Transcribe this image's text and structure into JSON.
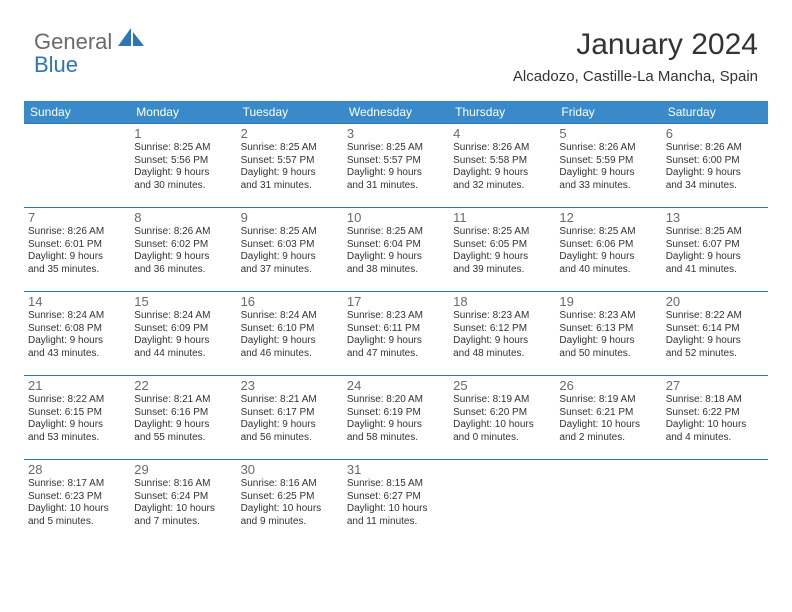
{
  "brand": {
    "part1": "General",
    "part2": "Blue",
    "logo_color": "#2e75b6"
  },
  "title": "January 2024",
  "location": "Alcadozo, Castille-La Mancha, Spain",
  "colors": {
    "header_bg": "#3a8ac9",
    "header_text": "#ffffff",
    "cell_border": "#2e75b6",
    "daynum": "#6a6a6a",
    "body_text": "#333333",
    "background": "#ffffff"
  },
  "typography": {
    "title_fontsize": 30,
    "location_fontsize": 15,
    "dayheader_fontsize": 12,
    "daynum_fontsize": 13,
    "cell_fontsize": 10
  },
  "day_headers": [
    "Sunday",
    "Monday",
    "Tuesday",
    "Wednesday",
    "Thursday",
    "Friday",
    "Saturday"
  ],
  "weeks": [
    [
      null,
      {
        "n": "1",
        "sr": "Sunrise: 8:25 AM",
        "ss": "Sunset: 5:56 PM",
        "d1": "Daylight: 9 hours",
        "d2": "and 30 minutes."
      },
      {
        "n": "2",
        "sr": "Sunrise: 8:25 AM",
        "ss": "Sunset: 5:57 PM",
        "d1": "Daylight: 9 hours",
        "d2": "and 31 minutes."
      },
      {
        "n": "3",
        "sr": "Sunrise: 8:25 AM",
        "ss": "Sunset: 5:57 PM",
        "d1": "Daylight: 9 hours",
        "d2": "and 31 minutes."
      },
      {
        "n": "4",
        "sr": "Sunrise: 8:26 AM",
        "ss": "Sunset: 5:58 PM",
        "d1": "Daylight: 9 hours",
        "d2": "and 32 minutes."
      },
      {
        "n": "5",
        "sr": "Sunrise: 8:26 AM",
        "ss": "Sunset: 5:59 PM",
        "d1": "Daylight: 9 hours",
        "d2": "and 33 minutes."
      },
      {
        "n": "6",
        "sr": "Sunrise: 8:26 AM",
        "ss": "Sunset: 6:00 PM",
        "d1": "Daylight: 9 hours",
        "d2": "and 34 minutes."
      }
    ],
    [
      {
        "n": "7",
        "sr": "Sunrise: 8:26 AM",
        "ss": "Sunset: 6:01 PM",
        "d1": "Daylight: 9 hours",
        "d2": "and 35 minutes."
      },
      {
        "n": "8",
        "sr": "Sunrise: 8:26 AM",
        "ss": "Sunset: 6:02 PM",
        "d1": "Daylight: 9 hours",
        "d2": "and 36 minutes."
      },
      {
        "n": "9",
        "sr": "Sunrise: 8:25 AM",
        "ss": "Sunset: 6:03 PM",
        "d1": "Daylight: 9 hours",
        "d2": "and 37 minutes."
      },
      {
        "n": "10",
        "sr": "Sunrise: 8:25 AM",
        "ss": "Sunset: 6:04 PM",
        "d1": "Daylight: 9 hours",
        "d2": "and 38 minutes."
      },
      {
        "n": "11",
        "sr": "Sunrise: 8:25 AM",
        "ss": "Sunset: 6:05 PM",
        "d1": "Daylight: 9 hours",
        "d2": "and 39 minutes."
      },
      {
        "n": "12",
        "sr": "Sunrise: 8:25 AM",
        "ss": "Sunset: 6:06 PM",
        "d1": "Daylight: 9 hours",
        "d2": "and 40 minutes."
      },
      {
        "n": "13",
        "sr": "Sunrise: 8:25 AM",
        "ss": "Sunset: 6:07 PM",
        "d1": "Daylight: 9 hours",
        "d2": "and 41 minutes."
      }
    ],
    [
      {
        "n": "14",
        "sr": "Sunrise: 8:24 AM",
        "ss": "Sunset: 6:08 PM",
        "d1": "Daylight: 9 hours",
        "d2": "and 43 minutes."
      },
      {
        "n": "15",
        "sr": "Sunrise: 8:24 AM",
        "ss": "Sunset: 6:09 PM",
        "d1": "Daylight: 9 hours",
        "d2": "and 44 minutes."
      },
      {
        "n": "16",
        "sr": "Sunrise: 8:24 AM",
        "ss": "Sunset: 6:10 PM",
        "d1": "Daylight: 9 hours",
        "d2": "and 46 minutes."
      },
      {
        "n": "17",
        "sr": "Sunrise: 8:23 AM",
        "ss": "Sunset: 6:11 PM",
        "d1": "Daylight: 9 hours",
        "d2": "and 47 minutes."
      },
      {
        "n": "18",
        "sr": "Sunrise: 8:23 AM",
        "ss": "Sunset: 6:12 PM",
        "d1": "Daylight: 9 hours",
        "d2": "and 48 minutes."
      },
      {
        "n": "19",
        "sr": "Sunrise: 8:23 AM",
        "ss": "Sunset: 6:13 PM",
        "d1": "Daylight: 9 hours",
        "d2": "and 50 minutes."
      },
      {
        "n": "20",
        "sr": "Sunrise: 8:22 AM",
        "ss": "Sunset: 6:14 PM",
        "d1": "Daylight: 9 hours",
        "d2": "and 52 minutes."
      }
    ],
    [
      {
        "n": "21",
        "sr": "Sunrise: 8:22 AM",
        "ss": "Sunset: 6:15 PM",
        "d1": "Daylight: 9 hours",
        "d2": "and 53 minutes."
      },
      {
        "n": "22",
        "sr": "Sunrise: 8:21 AM",
        "ss": "Sunset: 6:16 PM",
        "d1": "Daylight: 9 hours",
        "d2": "and 55 minutes."
      },
      {
        "n": "23",
        "sr": "Sunrise: 8:21 AM",
        "ss": "Sunset: 6:17 PM",
        "d1": "Daylight: 9 hours",
        "d2": "and 56 minutes."
      },
      {
        "n": "24",
        "sr": "Sunrise: 8:20 AM",
        "ss": "Sunset: 6:19 PM",
        "d1": "Daylight: 9 hours",
        "d2": "and 58 minutes."
      },
      {
        "n": "25",
        "sr": "Sunrise: 8:19 AM",
        "ss": "Sunset: 6:20 PM",
        "d1": "Daylight: 10 hours",
        "d2": "and 0 minutes."
      },
      {
        "n": "26",
        "sr": "Sunrise: 8:19 AM",
        "ss": "Sunset: 6:21 PM",
        "d1": "Daylight: 10 hours",
        "d2": "and 2 minutes."
      },
      {
        "n": "27",
        "sr": "Sunrise: 8:18 AM",
        "ss": "Sunset: 6:22 PM",
        "d1": "Daylight: 10 hours",
        "d2": "and 4 minutes."
      }
    ],
    [
      {
        "n": "28",
        "sr": "Sunrise: 8:17 AM",
        "ss": "Sunset: 6:23 PM",
        "d1": "Daylight: 10 hours",
        "d2": "and 5 minutes."
      },
      {
        "n": "29",
        "sr": "Sunrise: 8:16 AM",
        "ss": "Sunset: 6:24 PM",
        "d1": "Daylight: 10 hours",
        "d2": "and 7 minutes."
      },
      {
        "n": "30",
        "sr": "Sunrise: 8:16 AM",
        "ss": "Sunset: 6:25 PM",
        "d1": "Daylight: 10 hours",
        "d2": "and 9 minutes."
      },
      {
        "n": "31",
        "sr": "Sunrise: 8:15 AM",
        "ss": "Sunset: 6:27 PM",
        "d1": "Daylight: 10 hours",
        "d2": "and 11 minutes."
      },
      null,
      null,
      null
    ]
  ]
}
